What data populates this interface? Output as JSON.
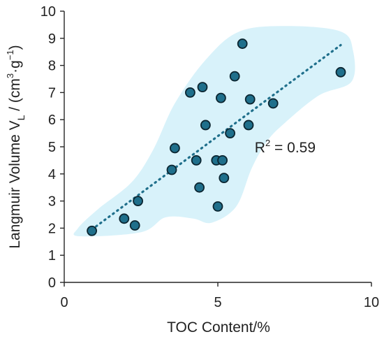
{
  "chart_data": {
    "type": "scatter",
    "title": "",
    "xlabel": "TOC Content/%",
    "ylabel": {
      "base": "Langmuir Volume V",
      "sub": "L",
      "unit_open": " / (cm",
      "unit_sup": "3",
      "unit_mid": "·g",
      "unit_sup2": "−1",
      "unit_close": ")"
    },
    "xlim": [
      0,
      10
    ],
    "ylim": [
      0,
      10
    ],
    "xticks": [
      "0",
      "5",
      "10"
    ],
    "yticks": [
      "0",
      "1",
      "2",
      "3",
      "4",
      "5",
      "6",
      "7",
      "8",
      "9",
      "10"
    ],
    "grid": false,
    "legend": "none",
    "colors": {
      "marker_fill": "#1f6f8b",
      "marker_stroke": "#0b2530",
      "trendline": "#1f6f8b",
      "envelope": "#d8f2fa"
    },
    "points": [
      {
        "x": 0.9,
        "y": 1.9
      },
      {
        "x": 1.95,
        "y": 2.35
      },
      {
        "x": 2.3,
        "y": 2.1
      },
      {
        "x": 2.4,
        "y": 3.0
      },
      {
        "x": 3.5,
        "y": 4.15
      },
      {
        "x": 3.6,
        "y": 4.95
      },
      {
        "x": 4.1,
        "y": 7.0
      },
      {
        "x": 4.3,
        "y": 4.5
      },
      {
        "x": 4.4,
        "y": 3.5
      },
      {
        "x": 4.5,
        "y": 7.2
      },
      {
        "x": 4.6,
        "y": 5.8
      },
      {
        "x": 4.95,
        "y": 4.5
      },
      {
        "x": 5.0,
        "y": 2.8
      },
      {
        "x": 5.1,
        "y": 6.8
      },
      {
        "x": 5.15,
        "y": 4.5
      },
      {
        "x": 5.2,
        "y": 3.85
      },
      {
        "x": 5.4,
        "y": 5.5
      },
      {
        "x": 5.55,
        "y": 7.6
      },
      {
        "x": 5.8,
        "y": 8.8
      },
      {
        "x": 6.0,
        "y": 5.8
      },
      {
        "x": 6.05,
        "y": 6.75
      },
      {
        "x": 6.8,
        "y": 6.6
      },
      {
        "x": 9.0,
        "y": 7.75
      }
    ],
    "trendline": {
      "x": [
        0.9,
        9.0
      ],
      "y": [
        1.95,
        8.75
      ]
    },
    "annotation": {
      "prefix": "R",
      "sup": "2",
      "suffix": " = 0.59",
      "x": 6.2,
      "y": 4.8
    },
    "envelope": [
      [
        0.5,
        1.7
      ],
      [
        2.5,
        1.85
      ],
      [
        3.3,
        2.4
      ],
      [
        4.2,
        2.35
      ],
      [
        4.8,
        2.2
      ],
      [
        5.6,
        2.8
      ],
      [
        6.1,
        4.2
      ],
      [
        6.6,
        5.2
      ],
      [
        7.2,
        5.9
      ],
      [
        8.3,
        6.9
      ],
      [
        9.35,
        7.4
      ],
      [
        9.4,
        8.55
      ],
      [
        9.0,
        9.25
      ],
      [
        7.3,
        9.45
      ],
      [
        5.7,
        9.25
      ],
      [
        4.6,
        8.2
      ],
      [
        3.6,
        6.6
      ],
      [
        2.9,
        4.9
      ],
      [
        2.2,
        3.7
      ],
      [
        1.1,
        2.7
      ],
      [
        0.45,
        2.0
      ]
    ]
  }
}
